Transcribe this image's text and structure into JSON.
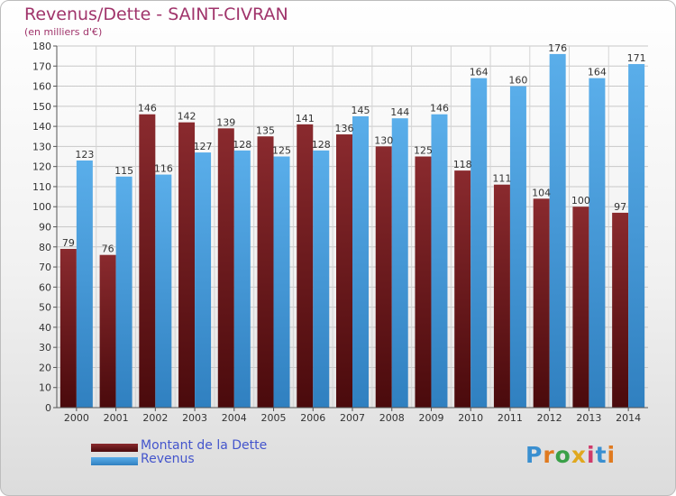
{
  "title": "Revenus/Dette - SAINT-CIVRAN",
  "subtitle": "(en milliers d'€)",
  "colors": {
    "dette": "#7a1f23",
    "revenus": "#4fa3e0",
    "title": "#a0346b",
    "legend_text": "#4455cc"
  },
  "legend": {
    "dette_label": "Montant de la Dette",
    "revenus_label": "Revenus"
  },
  "logo_text": "Proxiti",
  "chart_data": {
    "type": "bar",
    "categories": [
      "2000",
      "2001",
      "2002",
      "2003",
      "2004",
      "2005",
      "2006",
      "2007",
      "2008",
      "2009",
      "2010",
      "2011",
      "2012",
      "2013",
      "2014"
    ],
    "series": [
      {
        "name": "Montant de la Dette",
        "values": [
          79,
          76,
          146,
          142,
          139,
          135,
          141,
          136,
          130,
          125,
          118,
          111,
          104,
          100,
          97
        ]
      },
      {
        "name": "Revenus",
        "values": [
          123,
          115,
          116,
          127,
          128,
          125,
          128,
          145,
          144,
          146,
          164,
          160,
          176,
          164,
          171
        ]
      }
    ],
    "ylim": [
      0,
      180
    ],
    "ytick_step": 10,
    "grid": true,
    "legend_position": "bottom-left"
  }
}
